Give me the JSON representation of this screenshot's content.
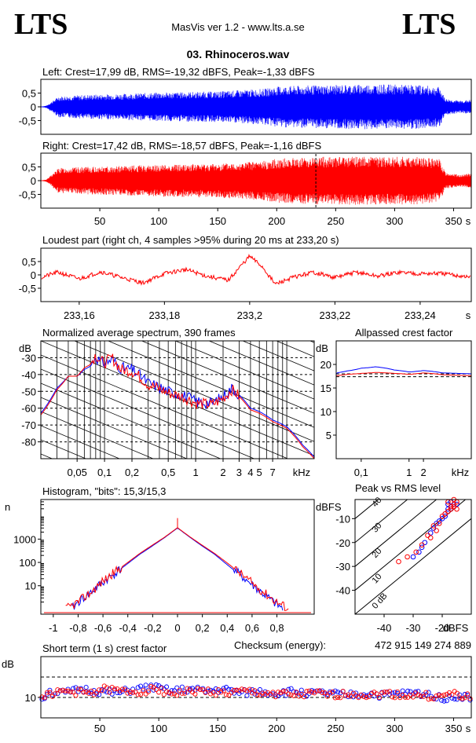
{
  "header": {
    "logo_left": "LTS",
    "logo_right": "LTS",
    "app_version": "MasVis ver 1.2 - www.lts.a.se",
    "file_title": "03. Rhinoceros.wav"
  },
  "chart_data": [
    {
      "id": "left",
      "type": "line",
      "title": "Left: Crest=17,99 dB, RMS=-19,32 dBFS, Peak=-1,33 dBFS",
      "ylim": [
        -1,
        1
      ],
      "yticks": [
        0.5,
        0,
        -0.5
      ],
      "ytick_labels": [
        "0,5",
        "0",
        "-0,5"
      ],
      "xlim": [
        0,
        365
      ],
      "color": "#0000ff",
      "envelope": {
        "x": [
          0,
          5,
          15,
          40,
          60,
          100,
          150,
          190,
          200,
          230,
          280,
          320,
          338,
          343,
          355,
          365
        ],
        "y": [
          0,
          0.05,
          0.38,
          0.44,
          0.46,
          0.52,
          0.56,
          0.66,
          0.74,
          0.78,
          0.82,
          0.8,
          0.72,
          0.3,
          0.22,
          0.26
        ]
      }
    },
    {
      "id": "right",
      "type": "line",
      "title": "Right: Crest=17,42 dB, RMS=-18,57 dBFS, Peak=-1,16 dBFS",
      "ylim": [
        -1,
        1
      ],
      "yticks": [
        0.5,
        0,
        -0.5
      ],
      "ytick_labels": [
        "0,5",
        "0",
        "-0,5"
      ],
      "xlim": [
        0,
        365
      ],
      "xticks": [
        50,
        100,
        150,
        200,
        250,
        300,
        350
      ],
      "xtick_labels": [
        "50",
        "100",
        "150",
        "200",
        "250",
        "300",
        "350"
      ],
      "xunit": "s",
      "color": "#ff0000",
      "marker_x": 233.2,
      "envelope": {
        "x": [
          0,
          5,
          15,
          40,
          60,
          100,
          150,
          190,
          200,
          230,
          280,
          320,
          338,
          343,
          355,
          365
        ],
        "y": [
          0,
          0.05,
          0.46,
          0.5,
          0.52,
          0.58,
          0.62,
          0.72,
          0.8,
          0.86,
          0.88,
          0.86,
          0.78,
          0.3,
          0.22,
          0.26
        ]
      }
    },
    {
      "id": "loudest",
      "type": "line",
      "title": "Loudest part (right ch, 4 samples >95% during 20 ms at 233,20 s)",
      "ylim": [
        -1,
        1
      ],
      "yticks": [
        0.5,
        0,
        -0.5
      ],
      "ytick_labels": [
        "0,5",
        "0",
        "-0,5"
      ],
      "xlim": [
        233.151,
        233.252
      ],
      "xticks": [
        233.16,
        233.18,
        233.2,
        233.22,
        233.24
      ],
      "xtick_labels": [
        "233,16",
        "233,18",
        "233,2",
        "233,22",
        "233,24"
      ],
      "xunit": "s",
      "color": "#ff0000",
      "x": [
        233.151,
        233.155,
        233.16,
        233.165,
        233.17,
        233.175,
        233.18,
        233.185,
        233.19,
        233.195,
        233.198,
        233.2,
        233.203,
        233.206,
        233.21,
        233.215,
        233.22,
        233.225,
        233.23,
        233.235,
        233.24,
        233.245,
        233.25,
        233.252
      ],
      "y": [
        -0.1,
        0.1,
        -0.15,
        0.12,
        -0.1,
        -0.3,
        0.05,
        0.2,
        -0.05,
        -0.2,
        0.35,
        0.7,
        0.3,
        -0.35,
        -0.1,
        0.1,
        -0.1,
        0.1,
        -0.05,
        0.1,
        0.05,
        0.05,
        -0.05,
        -0.1
      ]
    },
    {
      "id": "spectrum",
      "type": "line",
      "title": "Normalized average spectrum, 390 frames",
      "ylabel": "dB",
      "xunit": "kHz",
      "xscale": "log",
      "xlim": [
        0.02,
        20
      ],
      "ylim": [
        -90,
        -20
      ],
      "yticks": [
        -30,
        -40,
        -50,
        -60,
        -70,
        -80
      ],
      "ytick_labels": [
        "-30",
        "-40",
        "-50",
        "-60",
        "-70",
        "-80"
      ],
      "xticks": [
        0.05,
        0.1,
        0.2,
        0.5,
        1,
        2,
        3,
        4,
        5,
        7
      ],
      "xtick_labels": [
        "0,05",
        "0,1",
        "0,2",
        "0,5",
        "1",
        "2",
        "3",
        "4",
        "5",
        "7"
      ],
      "series": [
        {
          "color": "#0000ff",
          "x": [
            0.02,
            0.03,
            0.04,
            0.05,
            0.06,
            0.07,
            0.08,
            0.09,
            0.1,
            0.12,
            0.15,
            0.2,
            0.3,
            0.5,
            0.7,
            1,
            1.5,
            2,
            2.5,
            3,
            4,
            5,
            7,
            10,
            15,
            20
          ],
          "y": [
            -63,
            -48,
            -41,
            -41,
            -37,
            -35,
            -29,
            -33,
            -33,
            -31,
            -36,
            -37,
            -45,
            -50,
            -52,
            -56,
            -57,
            -53,
            -48,
            -52,
            -60,
            -62,
            -67,
            -71,
            -82,
            -89
          ]
        },
        {
          "color": "#ff0000",
          "x": [
            0.02,
            0.03,
            0.04,
            0.05,
            0.06,
            0.07,
            0.08,
            0.09,
            0.1,
            0.12,
            0.15,
            0.2,
            0.3,
            0.5,
            0.7,
            1,
            1.5,
            2,
            2.5,
            3,
            4,
            5,
            7,
            10,
            15,
            20
          ],
          "y": [
            -64,
            -49,
            -41,
            -41,
            -36,
            -34,
            -28,
            -32,
            -33,
            -30,
            -37,
            -38,
            -46,
            -51,
            -53,
            -57,
            -58,
            -54,
            -49,
            -53,
            -61,
            -63,
            -68,
            -72,
            -83,
            -90
          ]
        }
      ]
    },
    {
      "id": "allpassed",
      "type": "line",
      "title": "Allpassed crest factor",
      "ylabel": "dB",
      "xunit": "kHz",
      "xscale": "log",
      "xlim": [
        0.03,
        20
      ],
      "ylim": [
        0,
        25
      ],
      "yticks": [
        20,
        15,
        10,
        5
      ],
      "ytick_labels": [
        "20",
        "15",
        "10",
        "5"
      ],
      "xticks": [
        0.1,
        1,
        2
      ],
      "xtick_labels": [
        "0,1",
        "1",
        "2"
      ],
      "ref_lines": [
        18.0,
        17.4
      ],
      "series": [
        {
          "color": "#0000ff",
          "x": [
            0.03,
            0.05,
            0.1,
            0.2,
            0.5,
            1,
            2,
            5,
            10,
            20
          ],
          "y": [
            18.2,
            18.6,
            19.2,
            19.5,
            18.8,
            18.4,
            18.7,
            18.2,
            18.1,
            18.0
          ]
        },
        {
          "color": "#ff0000",
          "x": [
            0.03,
            0.05,
            0.1,
            0.2,
            0.5,
            1,
            2,
            5,
            10,
            20
          ],
          "y": [
            17.6,
            17.9,
            18.1,
            18.3,
            18.1,
            17.9,
            18.2,
            17.8,
            17.7,
            17.6
          ]
        }
      ]
    },
    {
      "id": "histogram",
      "type": "line",
      "title": "Histogram, \"bits\": 15,3/15,3",
      "ylabel": "n",
      "yscale": "log",
      "xlim": [
        -1.1,
        1.1
      ],
      "ylim": [
        0.6,
        50000
      ],
      "yticks": [
        1000,
        100,
        10
      ],
      "ytick_labels": [
        "1000",
        "100",
        "10"
      ],
      "xticks": [
        -1,
        -0.8,
        -0.6,
        -0.4,
        -0.2,
        0,
        0.2,
        0.4,
        0.6,
        0.8
      ],
      "xtick_labels": [
        "-1",
        "-0,8",
        "-0,6",
        "-0,4",
        "-0,2",
        "0",
        "0,2",
        "0,4",
        "0,6",
        "0,8"
      ],
      "series": [
        {
          "color": "#0000ff",
          "x": [
            -0.85,
            -0.8,
            -0.7,
            -0.6,
            -0.5,
            -0.4,
            -0.3,
            -0.2,
            -0.1,
            0,
            0.1,
            0.2,
            0.3,
            0.4,
            0.5,
            0.6,
            0.7,
            0.8,
            0.85
          ],
          "y": [
            1,
            2,
            5,
            14,
            35,
            90,
            230,
            520,
            1200,
            3000,
            1200,
            500,
            220,
            80,
            30,
            11,
            4,
            1.5,
            1
          ]
        },
        {
          "color": "#ff0000",
          "x": [
            -0.9,
            -0.8,
            -0.7,
            -0.6,
            -0.5,
            -0.4,
            -0.3,
            -0.2,
            -0.1,
            0,
            0.1,
            0.2,
            0.3,
            0.4,
            0.5,
            0.6,
            0.7,
            0.8,
            0.9
          ],
          "y": [
            1,
            2,
            5,
            16,
            40,
            100,
            250,
            560,
            1250,
            3100,
            1250,
            540,
            240,
            95,
            36,
            13,
            5,
            2,
            1
          ]
        }
      ],
      "peak_value": 8000
    },
    {
      "id": "peak_vs_rms",
      "type": "scatter",
      "title": "Peak vs RMS level",
      "ylabel": "dBFS",
      "xunit": "dBFS",
      "xlim": [
        -50,
        -10
      ],
      "ylim": [
        -50,
        -2
      ],
      "yticks": [
        -10,
        -20,
        -30,
        -40
      ],
      "ytick_labels": [
        "-10",
        "-20",
        "-30",
        "-40"
      ],
      "xticks": [
        -40,
        -30,
        -20
      ],
      "xtick_labels": [
        "-40",
        "-30",
        "-20"
      ],
      "diagonal_labels": [
        "40",
        "30",
        "20",
        "10",
        "0 dB"
      ],
      "series": [
        {
          "color": "#0000ff",
          "x": [
            -18,
            -17,
            -19,
            -16,
            -20,
            -22,
            -24,
            -26,
            -18,
            -17,
            -15,
            -21,
            -23,
            -19,
            -16,
            -27,
            -28,
            -30,
            -18,
            -17
          ],
          "y": [
            -6,
            -5,
            -8,
            -4,
            -10,
            -12,
            -16,
            -20,
            -7,
            -6,
            -4,
            -11,
            -14,
            -9,
            -5,
            -22,
            -24,
            -26,
            -4,
            -3
          ]
        },
        {
          "color": "#ff0000",
          "x": [
            -17,
            -16,
            -18,
            -15,
            -20,
            -23,
            -25,
            -27,
            -17,
            -16,
            -21,
            -19,
            -22,
            -24,
            -32,
            -35,
            -18,
            -16,
            -29,
            -15
          ],
          "y": [
            -5,
            -4,
            -7,
            -3,
            -9,
            -13,
            -17,
            -21,
            -6,
            -5,
            -12,
            -8,
            -15,
            -18,
            -26,
            -28,
            -3,
            -2,
            -24,
            -6
          ]
        }
      ]
    },
    {
      "id": "crest",
      "type": "scatter",
      "title": "Short term (1 s) crest factor",
      "ylabel": "dB",
      "xlim": [
        0,
        365
      ],
      "ylim": [
        0,
        30
      ],
      "yticks": [
        10
      ],
      "ytick_labels": [
        "10"
      ],
      "ref_lines": [
        20,
        10
      ],
      "xticks": [
        50,
        100,
        150,
        200,
        250,
        300,
        350
      ],
      "xtick_labels": [
        "50",
        "100",
        "150",
        "200",
        "250",
        "300",
        "350"
      ],
      "xunit": "s",
      "series": [
        {
          "color": "#0000ff",
          "x": [
            5,
            20,
            35,
            50,
            65,
            80,
            95,
            110,
            125,
            140,
            155,
            170,
            185,
            200,
            215,
            230,
            245,
            260,
            275,
            290,
            305,
            320,
            335,
            345,
            355,
            362
          ],
          "y": [
            13,
            12,
            14,
            13,
            12,
            14,
            15,
            13,
            14,
            13,
            14,
            12,
            13,
            12,
            13,
            12,
            12,
            11,
            12,
            11,
            12,
            12,
            11,
            9,
            11,
            10
          ]
        },
        {
          "color": "#ff0000",
          "x": [
            8,
            23,
            38,
            53,
            68,
            83,
            98,
            113,
            128,
            143,
            158,
            173,
            188,
            203,
            218,
            233,
            248,
            263,
            278,
            293,
            308,
            323,
            338,
            348,
            358,
            364
          ],
          "y": [
            12,
            13,
            12,
            14,
            13,
            13,
            14,
            12,
            13,
            13,
            12,
            13,
            12,
            12,
            11,
            12,
            11,
            12,
            11,
            12,
            11,
            11,
            10,
            12,
            10,
            11
          ]
        }
      ]
    }
  ],
  "checksum": {
    "label": "Checksum (energy):",
    "value": "472 915 149 274 889"
  }
}
